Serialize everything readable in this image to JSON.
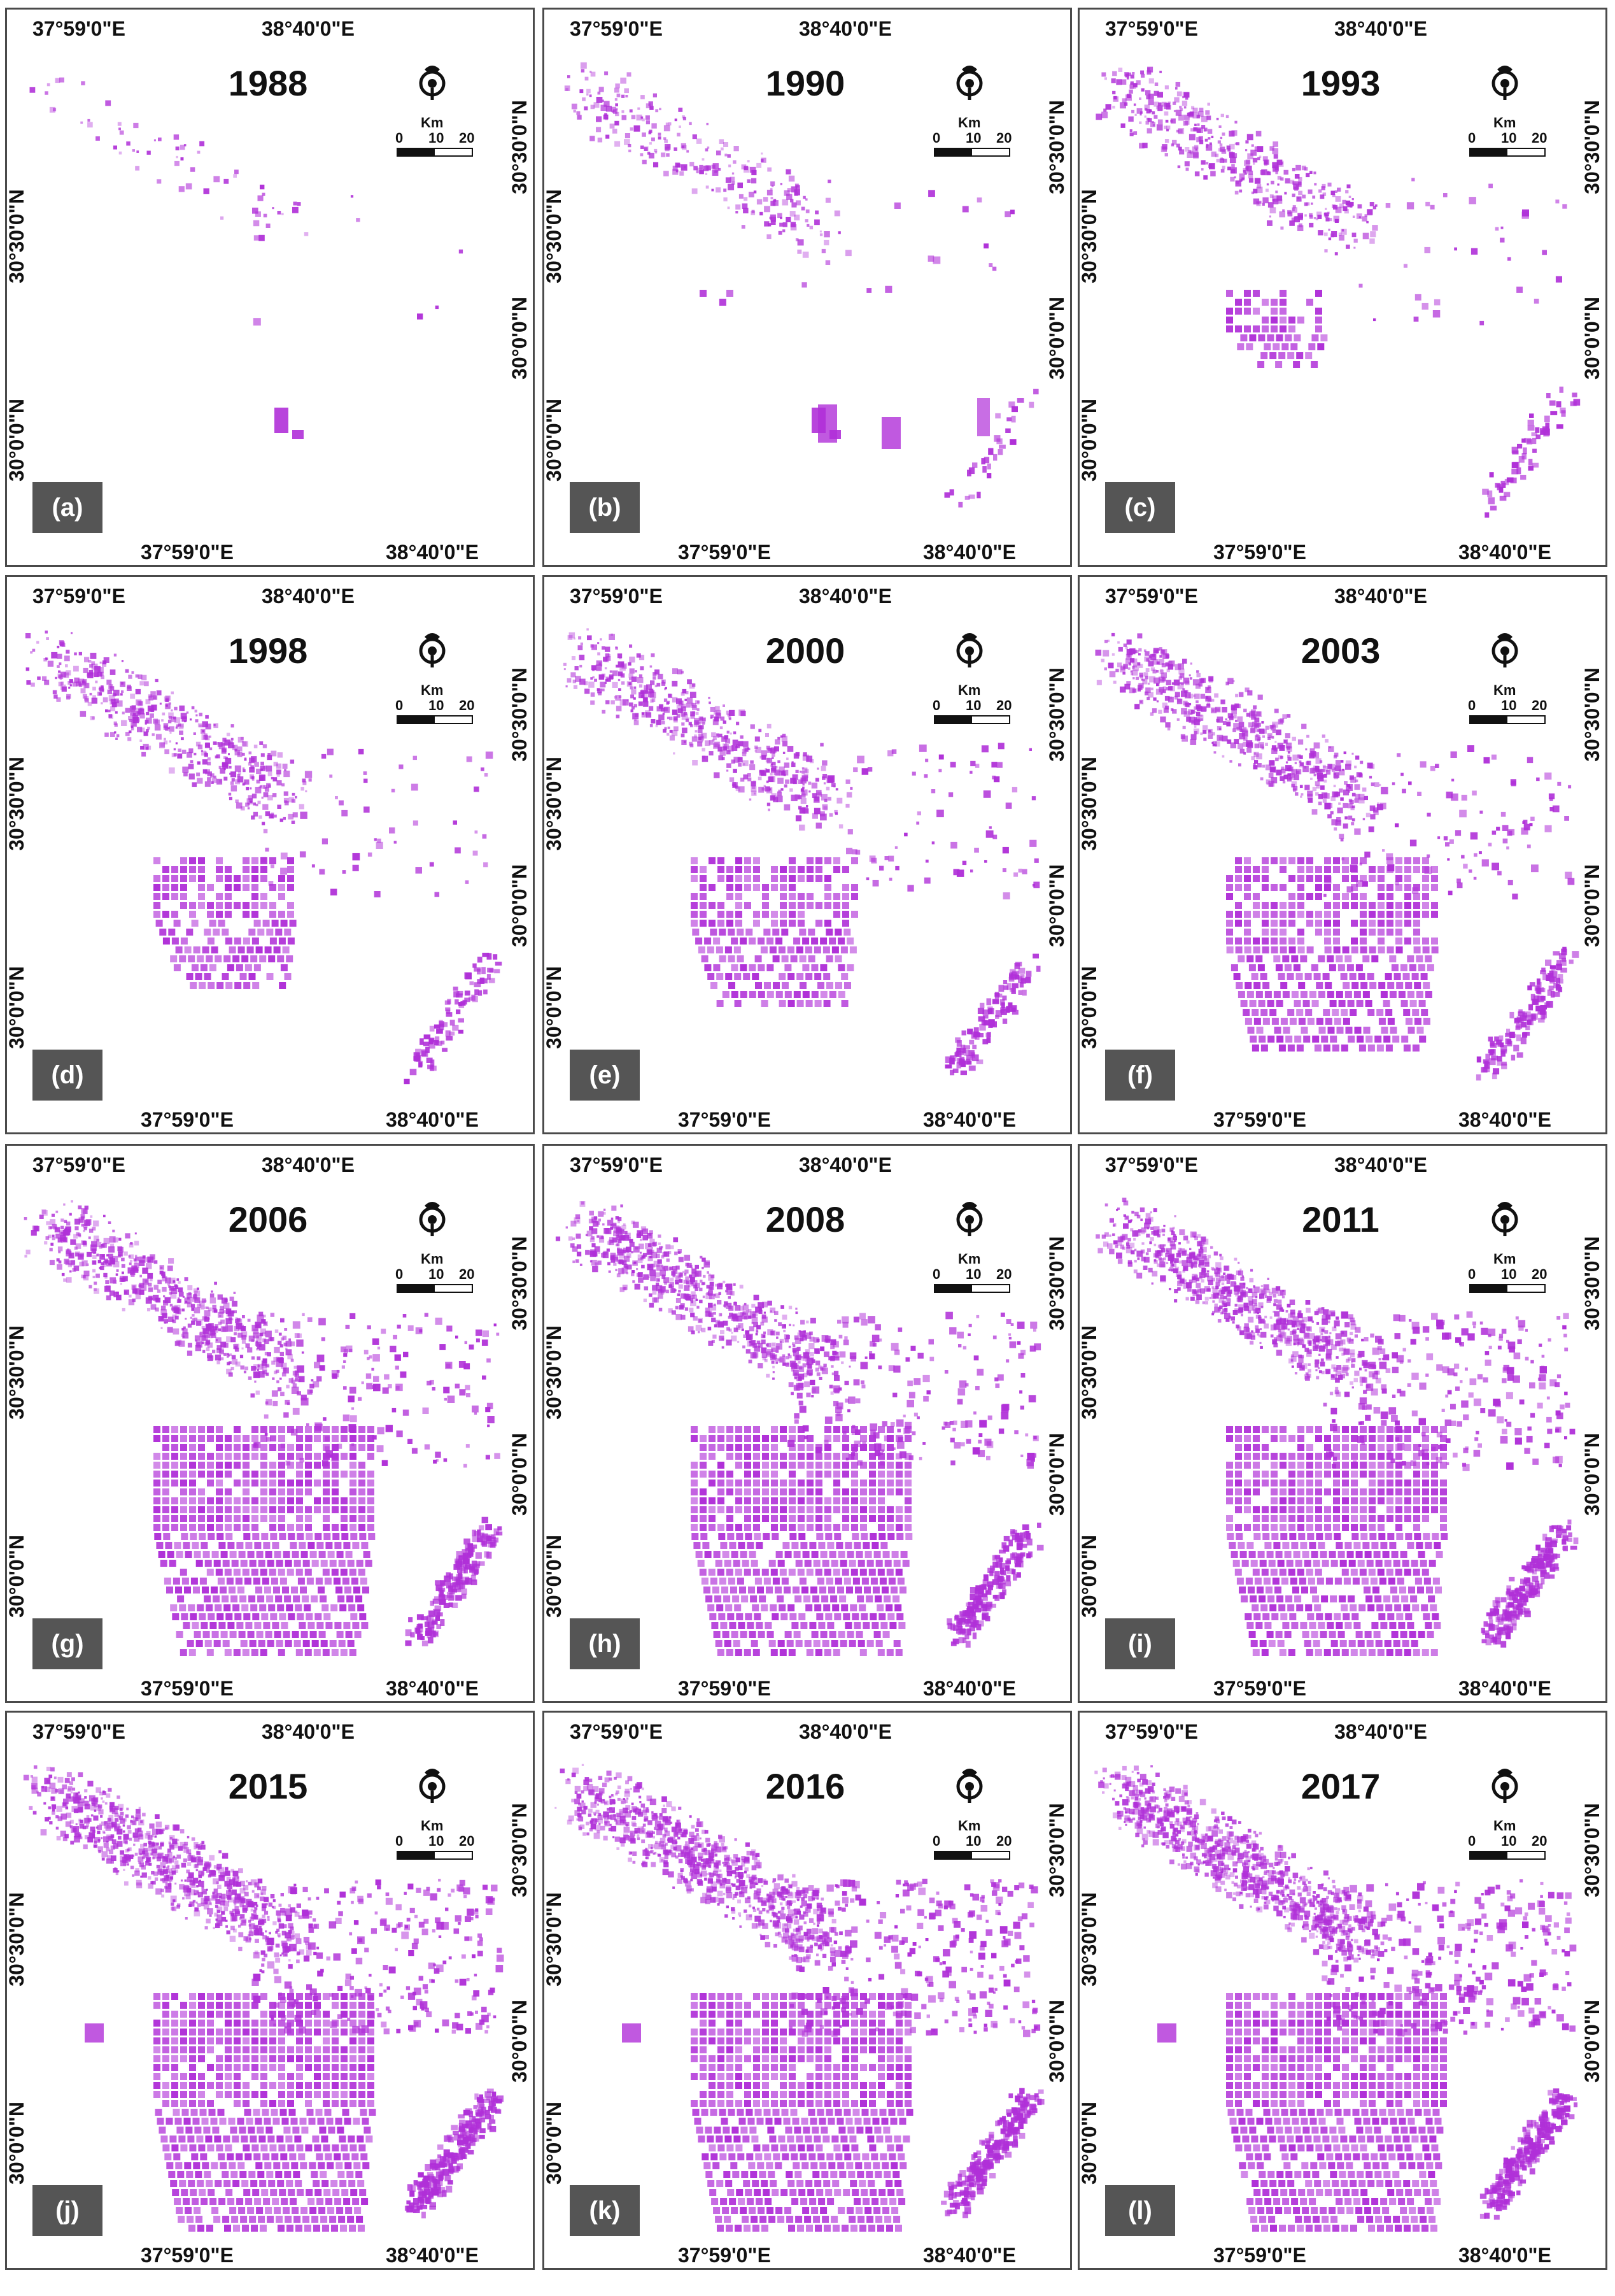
{
  "lon_labels": [
    "37°59'0\"E",
    "38°40'0\"E"
  ],
  "lat_labels": [
    "30°30'0\"N",
    "30°0'0\"N"
  ],
  "scale": {
    "unit": "Km",
    "ticks": [
      "0",
      "10",
      "20"
    ]
  },
  "colors": {
    "cultivated": "#b030d8",
    "frame": "#4a4a4a",
    "label_bg": "#555555"
  },
  "icons": [
    "north-arrow-icon"
  ],
  "panels": [
    {
      "letter": "(a)",
      "year": "1988",
      "stage": 0
    },
    {
      "letter": "(b)",
      "year": "1990",
      "stage": 1
    },
    {
      "letter": "(c)",
      "year": "1993",
      "stage": 2
    },
    {
      "letter": "(d)",
      "year": "1998",
      "stage": 3
    },
    {
      "letter": "(e)",
      "year": "2000",
      "stage": 4
    },
    {
      "letter": "(f)",
      "year": "2003",
      "stage": 5
    },
    {
      "letter": "(g)",
      "year": "2006",
      "stage": 6
    },
    {
      "letter": "(h)",
      "year": "2008",
      "stage": 7
    },
    {
      "letter": "(i)",
      "year": "2011",
      "stage": 8
    },
    {
      "letter": "(j)",
      "year": "2015",
      "stage": 9
    },
    {
      "letter": "(k)",
      "year": "2016",
      "stage": 10
    },
    {
      "letter": "(l)",
      "year": "2017",
      "stage": 11
    }
  ]
}
